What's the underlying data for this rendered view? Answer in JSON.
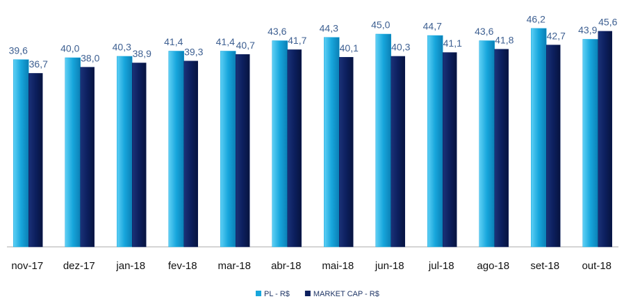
{
  "chart_data": {
    "type": "bar",
    "categories": [
      "nov-17",
      "dez-17",
      "jan-18",
      "fev-18",
      "mar-18",
      "abr-18",
      "mai-18",
      "jun-18",
      "jul-18",
      "ago-18",
      "set-18",
      "out-18"
    ],
    "series": [
      {
        "name": "PL - R$",
        "color": "#17a6dc",
        "values": [
          39.6,
          40.0,
          40.3,
          41.4,
          41.4,
          43.6,
          44.3,
          45.0,
          44.7,
          43.6,
          46.2,
          43.9
        ],
        "value_labels": [
          "39,6",
          "40,0",
          "40,3",
          "41,4",
          "41,4",
          "43,6",
          "44,3",
          "45,0",
          "44,7",
          "43,6",
          "46,2",
          "43,9"
        ]
      },
      {
        "name": "MARKET CAP - R$",
        "color": "#0c1f5e",
        "values": [
          36.7,
          38.0,
          38.9,
          39.3,
          40.7,
          41.7,
          40.1,
          40.3,
          41.1,
          41.8,
          42.7,
          45.6
        ],
        "value_labels": [
          "36,7",
          "38,0",
          "38,9",
          "39,3",
          "40,7",
          "41,7",
          "40,1",
          "40,3",
          "41,1",
          "41,8",
          "42,7",
          "45,6"
        ]
      }
    ],
    "ylim": [
      0,
      52
    ]
  }
}
